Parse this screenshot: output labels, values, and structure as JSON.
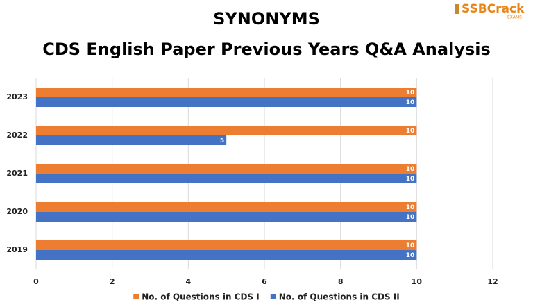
{
  "chart_data": {
    "type": "hbar",
    "title": "SYNONYMS",
    "subtitle": "CDS English Paper Previous Years Q&A Analysis",
    "logo_text": "SSBCrack",
    "logo_subtext": "EXAMS",
    "categories": [
      "2023",
      "2022",
      "2021",
      "2020",
      "2019"
    ],
    "series": [
      {
        "name": "No. of Questions in CDS I",
        "color": "#ed7d31",
        "values": [
          10,
          10,
          10,
          10,
          10
        ]
      },
      {
        "name": "No. of Questions in CDS II",
        "color": "#4472c4",
        "values": [
          10,
          5,
          10,
          10,
          10
        ]
      }
    ],
    "xlim": [
      0,
      12
    ],
    "xticks": [
      0,
      2,
      4,
      6,
      8,
      10,
      12
    ],
    "grid": true,
    "legend": "bottom"
  }
}
